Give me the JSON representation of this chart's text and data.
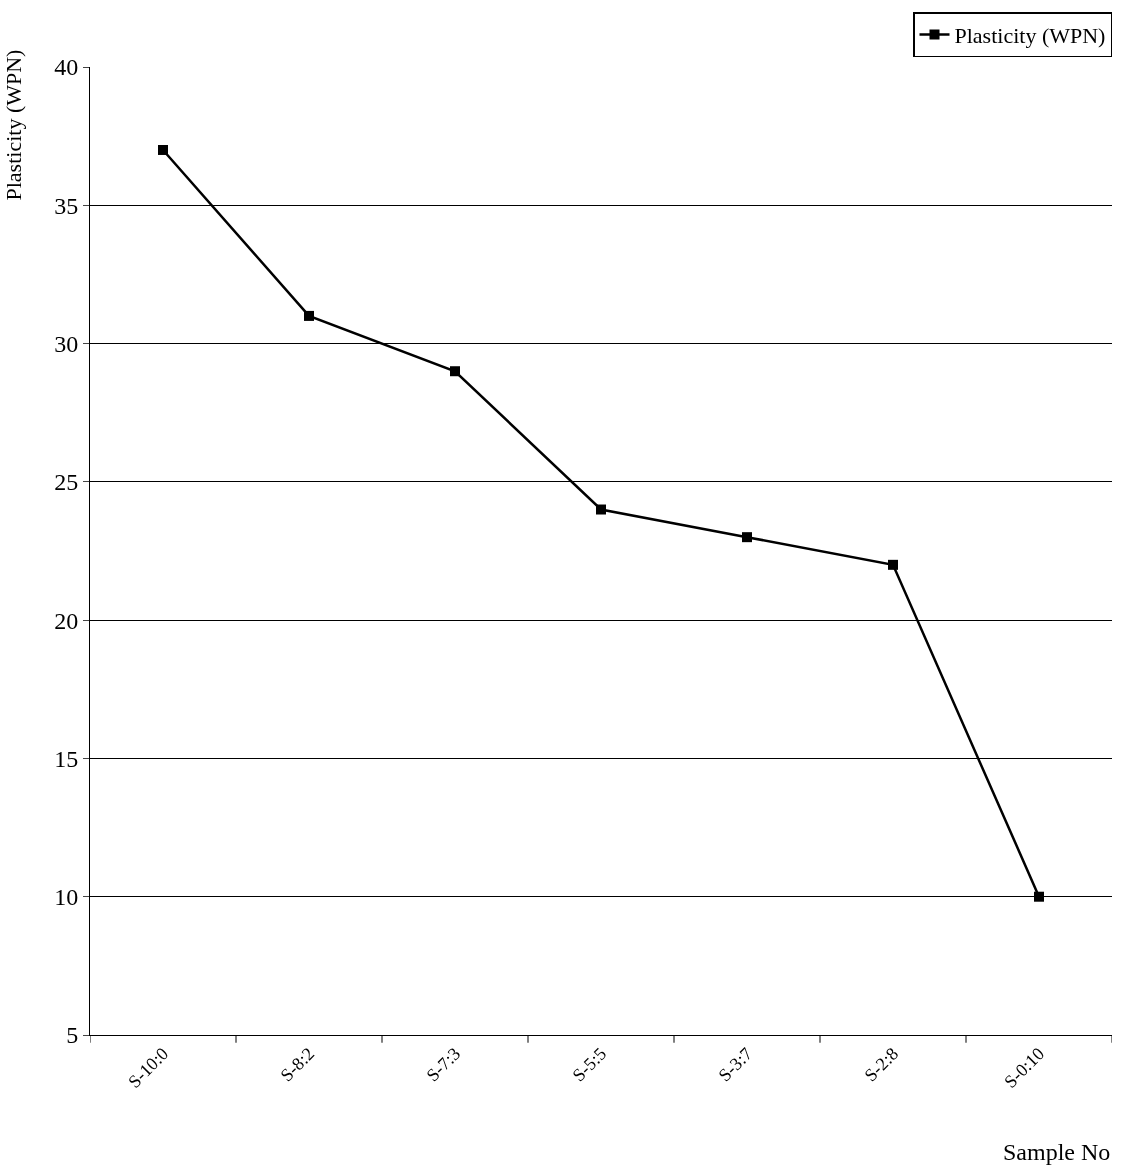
{
  "chart_data": {
    "type": "line",
    "xlabel": "Sample No",
    "ylabel": "Plasticity (WPN)",
    "categories": [
      "S-10:0",
      "S-8:2",
      "S-7:3",
      "S-5:5",
      "S-3:7",
      "S-2:8",
      "S-0:10"
    ],
    "series": [
      {
        "name": "Plasticity (WPN)",
        "color": "#000000",
        "values": [
          37,
          31,
          29,
          24,
          23,
          22,
          10
        ]
      }
    ],
    "ylim": [
      5,
      40
    ],
    "yticks": [
      5,
      10,
      15,
      20,
      25,
      30,
      35,
      40
    ],
    "grid": "y",
    "legend": "top right",
    "marker": "square",
    "line_style": "solid"
  }
}
